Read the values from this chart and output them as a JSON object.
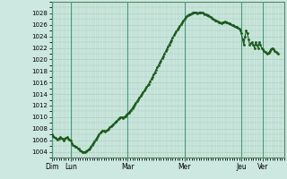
{
  "background_color": "#cce8e0",
  "plot_bg_color": "#cce8e0",
  "line_color": "#1a5c1a",
  "line_width": 0.8,
  "marker": "o",
  "marker_size": 1.0,
  "ylim": [
    1003,
    1030
  ],
  "yticks": [
    1004,
    1006,
    1008,
    1010,
    1012,
    1014,
    1016,
    1018,
    1020,
    1022,
    1024,
    1026,
    1028
  ],
  "ylabel_fontsize": 5.0,
  "xlabel_fontsize": 5.5,
  "grid_color": "#aaccbb",
  "grid_major_lw": 0.4,
  "grid_minor_lw": 0.3,
  "vline_color": "#449977",
  "vline_lw": 0.8,
  "day_labels": [
    "Dim",
    "Lun",
    "Mar",
    "Mer",
    "Jeu",
    "Ver"
  ],
  "day_positions": [
    0,
    16,
    64,
    112,
    160,
    178
  ],
  "xlim": [
    0,
    196
  ],
  "pressure_data": [
    1007.0,
    1006.8,
    1006.6,
    1006.4,
    1006.2,
    1006.1,
    1006.3,
    1006.5,
    1006.4,
    1006.2,
    1006.0,
    1006.2,
    1006.4,
    1006.5,
    1006.3,
    1006.1,
    1006.0,
    1005.5,
    1005.2,
    1005.0,
    1004.9,
    1004.8,
    1004.6,
    1004.5,
    1004.3,
    1004.1,
    1004.0,
    1004.0,
    1004.0,
    1004.1,
    1004.2,
    1004.4,
    1004.6,
    1004.9,
    1005.2,
    1005.5,
    1005.8,
    1006.1,
    1006.4,
    1006.7,
    1007.0,
    1007.3,
    1007.5,
    1007.7,
    1007.6,
    1007.5,
    1007.6,
    1007.8,
    1008.0,
    1008.2,
    1008.4,
    1008.6,
    1008.8,
    1009.0,
    1009.2,
    1009.4,
    1009.6,
    1009.8,
    1010.0,
    1010.0,
    1009.9,
    1010.0,
    1010.2,
    1010.4,
    1010.6,
    1010.8,
    1011.0,
    1011.3,
    1011.6,
    1011.9,
    1012.2,
    1012.5,
    1012.8,
    1013.1,
    1013.4,
    1013.7,
    1014.0,
    1014.3,
    1014.6,
    1014.9,
    1015.2,
    1015.5,
    1015.8,
    1016.2,
    1016.6,
    1017.0,
    1017.4,
    1017.8,
    1018.2,
    1018.6,
    1019.0,
    1019.4,
    1019.8,
    1020.2,
    1020.6,
    1021.0,
    1021.4,
    1021.8,
    1022.2,
    1022.6,
    1023.0,
    1023.4,
    1023.8,
    1024.2,
    1024.5,
    1024.9,
    1025.2,
    1025.5,
    1025.8,
    1026.1,
    1026.4,
    1026.7,
    1027.0,
    1027.3,
    1027.5,
    1027.7,
    1027.8,
    1027.9,
    1028.0,
    1028.1,
    1028.2,
    1028.2,
    1028.1,
    1028.0,
    1028.1,
    1028.2,
    1028.2,
    1028.1,
    1028.0,
    1027.9,
    1027.8,
    1027.7,
    1027.6,
    1027.5,
    1027.4,
    1027.2,
    1027.1,
    1026.9,
    1026.8,
    1026.7,
    1026.6,
    1026.5,
    1026.4,
    1026.3,
    1026.4,
    1026.5,
    1026.6,
    1026.5,
    1026.4,
    1026.3,
    1026.2,
    1026.1,
    1026.0,
    1025.9,
    1025.8,
    1025.7,
    1025.6,
    1025.5,
    1025.3,
    1025.1,
    1024.5,
    1023.5,
    1022.5,
    1024.0,
    1025.0,
    1024.5,
    1023.5,
    1022.5,
    1022.8,
    1023.0,
    1022.5,
    1022.0,
    1023.0,
    1022.5,
    1022.0,
    1023.0,
    1022.5,
    1022.0,
    1021.8,
    1021.5,
    1021.3,
    1021.1,
    1021.0,
    1021.2,
    1021.5,
    1021.8,
    1022.0,
    1021.8,
    1021.5,
    1021.3,
    1021.2,
    1021.0
  ]
}
